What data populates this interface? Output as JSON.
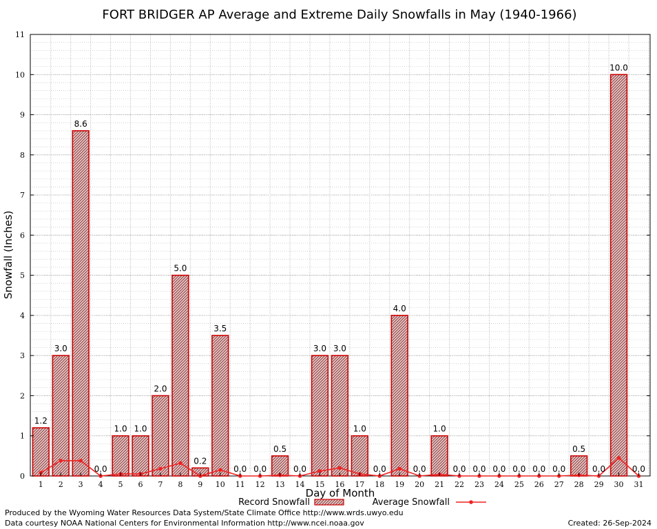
{
  "chart_data": {
    "type": "bar",
    "title": "FORT BRIDGER AP Average and Extreme Daily Snowfalls in May (1940-1966)",
    "xlabel": "Day of Month",
    "ylabel": "Snowfall (Inches)",
    "ylim": [
      0,
      11
    ],
    "yticks": [
      0,
      1,
      2,
      3,
      4,
      5,
      6,
      7,
      8,
      9,
      10,
      11
    ],
    "grid": true,
    "legend_position": "bottom",
    "categories": [
      "1",
      "2",
      "3",
      "4",
      "5",
      "6",
      "7",
      "8",
      "9",
      "10",
      "11",
      "12",
      "13",
      "14",
      "15",
      "16",
      "17",
      "18",
      "19",
      "20",
      "21",
      "22",
      "23",
      "24",
      "25",
      "26",
      "27",
      "28",
      "29",
      "30",
      "31"
    ],
    "series": [
      {
        "name": "Record Snowfall",
        "type": "bar",
        "color": "#cc0000",
        "values": [
          1.2,
          3.0,
          8.6,
          0.0,
          1.0,
          1.0,
          2.0,
          5.0,
          0.2,
          3.5,
          0.0,
          0.0,
          0.5,
          0.0,
          3.0,
          3.0,
          1.0,
          0.0,
          4.0,
          0.0,
          1.0,
          0.0,
          0.0,
          0.0,
          0.0,
          0.0,
          0.0,
          0.5,
          0.0,
          10.0,
          0.0
        ],
        "labels": [
          "1.2",
          "3.0",
          "8.6",
          "0.0",
          "1.0",
          "1.0",
          "2.0",
          "5.0",
          "0.2",
          "3.5",
          "0.0",
          "0.0",
          "0.5",
          "0.0",
          "3.0",
          "3.0",
          "1.0",
          "0.0",
          "4.0",
          "0.0",
          "1.0",
          "0.0",
          "0.0",
          "0.0",
          "0.0",
          "0.0",
          "0.0",
          "0.5",
          "0.0",
          "10.0",
          "0.0"
        ]
      },
      {
        "name": "Average Snowfall",
        "type": "line",
        "color": "#ee2222",
        "values": [
          0.08,
          0.38,
          0.38,
          0.0,
          0.05,
          0.05,
          0.18,
          0.32,
          0.0,
          0.15,
          0.0,
          0.0,
          0.02,
          0.0,
          0.12,
          0.2,
          0.05,
          0.0,
          0.18,
          0.0,
          0.04,
          0.0,
          0.0,
          0.0,
          0.0,
          0.0,
          0.0,
          0.02,
          0.0,
          0.45,
          0.0
        ]
      }
    ]
  },
  "footer": {
    "produced_by": "Produced by the Wyoming Water Resources Data System/State Climate Office http://www.wrds.uwyo.edu",
    "courtesy": "Data courtesy NOAA National Centers for Environmental Information http://www.ncei.noaa.gov",
    "created": "Created:  26-Sep-2024"
  }
}
